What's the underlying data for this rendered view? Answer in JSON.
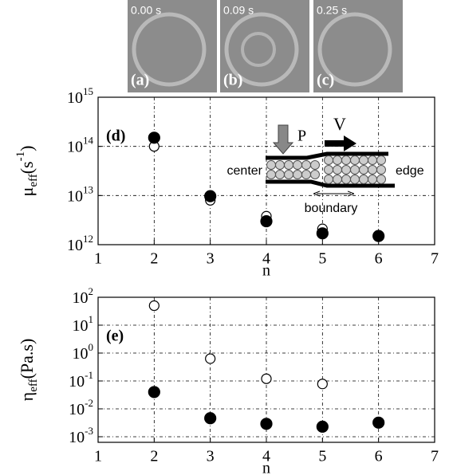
{
  "images": [
    {
      "time": "0.00 s",
      "label": "(a)"
    },
    {
      "time": "0.09 s",
      "label": "(b)"
    },
    {
      "time": "0.25 s",
      "label": "(c)"
    }
  ],
  "chart_data": [
    {
      "type": "scatter",
      "panel_label": "(d)",
      "ylabel": [
        {
          "text": "μ"
        },
        {
          "text": "eff",
          "shift": "sub"
        },
        {
          "text": "(s"
        },
        {
          "text": "-1",
          "shift": "sup"
        },
        {
          "text": ")"
        }
      ],
      "xlabel": "n",
      "log_y": true,
      "grid": true,
      "x": [
        2,
        3,
        4,
        5,
        6
      ],
      "series": [
        {
          "color": "#000000",
          "filled": true,
          "values": [
            150000000000000,
            9700000000000,
            3000000000000,
            1700000000000,
            1500000000000
          ]
        },
        {
          "color": "#000000",
          "filled": false,
          "values": [
            100000000000000,
            8000000000000,
            3800000000000,
            2100000000000,
            null
          ]
        }
      ],
      "xlim": [
        1,
        7
      ],
      "xticks": [
        1,
        2,
        3,
        4,
        5,
        6,
        7
      ],
      "ylim": [
        1000000000000,
        1000000000000000
      ],
      "yticks": [
        {
          "value": 1000000000000,
          "label": "10^12"
        },
        {
          "value": 10000000000000,
          "label": "10^13"
        },
        {
          "value": 100000000000000,
          "label": "10^14"
        },
        {
          "value": 1000000000000000,
          "label": "10^15"
        }
      ],
      "inset_labels": {
        "pressure": "P",
        "velocity": "V",
        "center": "center",
        "edge": "edge",
        "boundary": "boundary"
      }
    },
    {
      "type": "scatter",
      "panel_label": "(e)",
      "ylabel": [
        {
          "text": "η"
        },
        {
          "text": "eff",
          "shift": "sub"
        },
        {
          "text": "(Pa.s)"
        }
      ],
      "xlabel": "n",
      "log_y": true,
      "grid": true,
      "x": [
        2,
        3,
        4,
        5,
        6
      ],
      "series": [
        {
          "color": "#000000",
          "filled": true,
          "values": [
            0.04,
            0.0046,
            0.0029,
            0.0023,
            0.0032
          ]
        },
        {
          "color": "#000000",
          "filled": false,
          "values": [
            50,
            0.63,
            0.12,
            0.078,
            null
          ]
        }
      ],
      "xlim": [
        1,
        7
      ],
      "xticks": [
        1,
        2,
        3,
        4,
        5,
        6,
        7
      ],
      "ylim": [
        0.00063,
        100
      ],
      "yticks": [
        {
          "value": 0.001,
          "label": "10^-3"
        },
        {
          "value": 0.01,
          "label": "10^-2"
        },
        {
          "value": 0.1,
          "label": "10^-1"
        },
        {
          "value": 1,
          "label": "10^0"
        },
        {
          "value": 10,
          "label": "10^1"
        },
        {
          "value": 100,
          "label": "10^2"
        }
      ]
    }
  ]
}
